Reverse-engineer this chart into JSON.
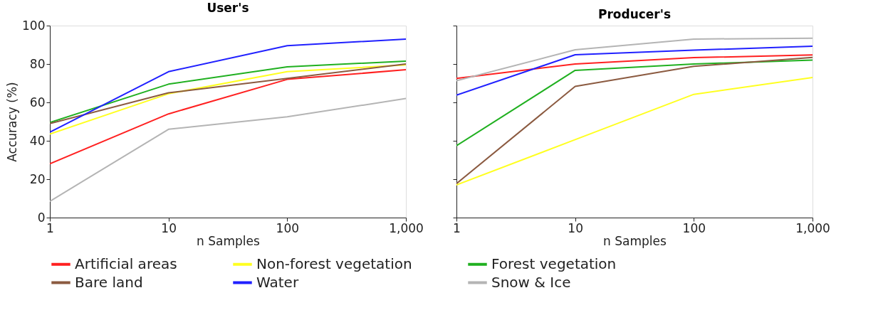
{
  "chart_data": [
    {
      "type": "line",
      "title": "User's",
      "xlabel": "n Samples",
      "ylabel": "Accuracy (%)",
      "x": [
        1,
        10,
        100,
        1000
      ],
      "xlim": [
        1,
        1000
      ],
      "xticks": [
        1,
        10,
        100,
        {
          "value": 1000,
          "label": "1,000"
        }
      ],
      "ylim": [
        0,
        100
      ],
      "yticks": [
        0,
        20,
        40,
        60,
        80,
        100
      ],
      "log": "x",
      "grid": false,
      "legend": "bottom",
      "marker": "none",
      "line_style": "solid",
      "series": [
        {
          "name": "Artificial areas",
          "color": "#ff2020",
          "values": [
            28,
            54,
            72,
            77
          ]
        },
        {
          "name": "Non-forest vegetation",
          "color": "#ffff20",
          "values": [
            43.5,
            64.5,
            76,
            79.5
          ]
        },
        {
          "name": "Forest vegetation",
          "color": "#20b020",
          "values": [
            49.5,
            69.5,
            78.5,
            81.5
          ]
        },
        {
          "name": "Bare land",
          "color": "#8b5a40",
          "values": [
            49,
            65,
            72.5,
            80
          ]
        },
        {
          "name": "Water",
          "color": "#2020ff",
          "values": [
            44.5,
            76,
            89.5,
            93
          ]
        },
        {
          "name": "Snow & Ice",
          "color": "#b4b4b4",
          "values": [
            8.5,
            46,
            52.5,
            62
          ]
        }
      ]
    },
    {
      "type": "line",
      "title": "Producer's",
      "xlabel": "n Samples",
      "x": [
        1,
        10,
        100,
        1000
      ],
      "xlim": [
        1,
        1000
      ],
      "xticks": [
        1,
        10,
        100,
        {
          "value": 1000,
          "label": "1,000"
        }
      ],
      "ylim": [
        0,
        100
      ],
      "yticks": [
        0,
        20,
        40,
        60,
        80,
        100
      ],
      "tick_labels": "x",
      "log": "x",
      "grid": false,
      "legend": "bottom",
      "marker": "none",
      "line_style": "solid",
      "series": [
        {
          "name": "Artificial areas",
          "color": "#ff2020",
          "values": [
            72.5,
            80,
            83.3,
            84.7
          ]
        },
        {
          "name": "Non-forest vegetation",
          "color": "#ffff20",
          "values": [
            17,
            40.6,
            64.2,
            73
          ]
        },
        {
          "name": "Forest vegetation",
          "color": "#20b020",
          "values": [
            37.4,
            76.7,
            80,
            82
          ]
        },
        {
          "name": "Bare land",
          "color": "#8b5a40",
          "values": [
            17.7,
            68.3,
            78.8,
            83.4
          ]
        },
        {
          "name": "Water",
          "color": "#2020ff",
          "values": [
            63.8,
            84.8,
            87.2,
            89.3
          ]
        },
        {
          "name": "Snow & Ice",
          "color": "#b4b4b4",
          "values": [
            71.3,
            87.4,
            93,
            93.4
          ]
        }
      ]
    }
  ]
}
